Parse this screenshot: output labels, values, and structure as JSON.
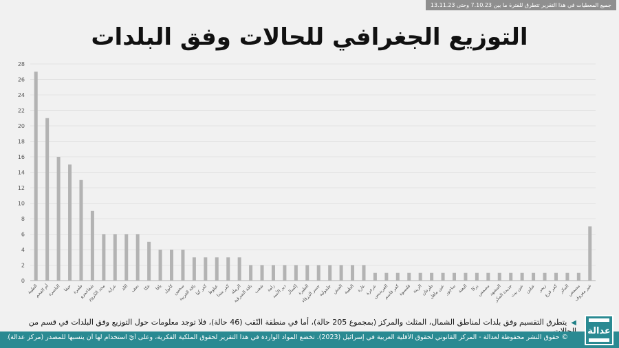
{
  "top_note": "جميع المعطيات في هذا التقرير تتطرق للفترة ما بين 7.10.23 وحتى 13.11.23",
  "title": "التوزيع الجغرافي للحالات وفق البلدات",
  "bottom_note": "يتطرق التقسيم وفق بلدات لمناطق الشمال، المثلث والمركز (بمجموع 205 حالة)، أما في منطقة النّقب (46 حالة)، فلا توجد معلومات حول التوزيع وفق البلدات في قسم من الحالات.",
  "footer": "© حقوق النشر محفوظة لعدالة - المركز القانوني لحقوق الأقلية العربية في إسرائيل (2023). تخضع المواد الواردة في هذا التقرير لحقوق الملكية الفكرية، وعلى أيّ استخدام لها أن ينسبها للمصدر (مركز عدالة).",
  "logo_text": "عدالة",
  "chart_data": {
    "type": "bar",
    "ylim": [
      0,
      28
    ],
    "yticks": [
      0,
      2,
      4,
      6,
      8,
      10,
      12,
      14,
      16,
      18,
      20,
      22,
      24,
      26,
      28
    ],
    "grid": true,
    "bar_color": "#b3b3b3",
    "categories": [
      "الطيبة",
      "أم الفحم",
      "الناصرة",
      "حيفا",
      "طمرة",
      "شفاعمرو",
      "مجد الكروم",
      "عرابة",
      "اللد",
      "نحف",
      "عكا",
      "يافا",
      "كابول",
      "سخنين",
      "باقة الغربية",
      "كفر كنا",
      "عيلوط",
      "كفر مندا",
      "الرملة",
      "باقة الشرقية",
      "شعب",
      "رامة",
      "دير الأسد",
      "إكسال",
      "الطيرة",
      "جسر الزرقاء",
      "جلجولية",
      "الجش",
      "الطيبة",
      "عارة",
      "عرعرة",
      "الفريديس",
      "كفر قاسم",
      "قلنسوة",
      "الرينة",
      "طرعان",
      "عين ماهل",
      "ساجور",
      "البعنة",
      "يركا",
      "مصمص",
      "المشهد",
      "جديدة المكر",
      "عين بيت",
      "عبلين",
      "زيمر",
      "كفر قرع",
      "المكر",
      "مصمص",
      "غير معروف"
    ],
    "values": [
      27,
      21,
      16,
      15,
      13,
      9,
      6,
      6,
      6,
      6,
      5,
      4,
      4,
      4,
      3,
      3,
      3,
      3,
      3,
      2,
      2,
      2,
      2,
      2,
      2,
      2,
      2,
      2,
      2,
      2,
      1,
      1,
      1,
      1,
      1,
      1,
      1,
      1,
      1,
      1,
      1,
      1,
      1,
      1,
      1,
      1,
      1,
      1,
      1,
      7
    ]
  }
}
